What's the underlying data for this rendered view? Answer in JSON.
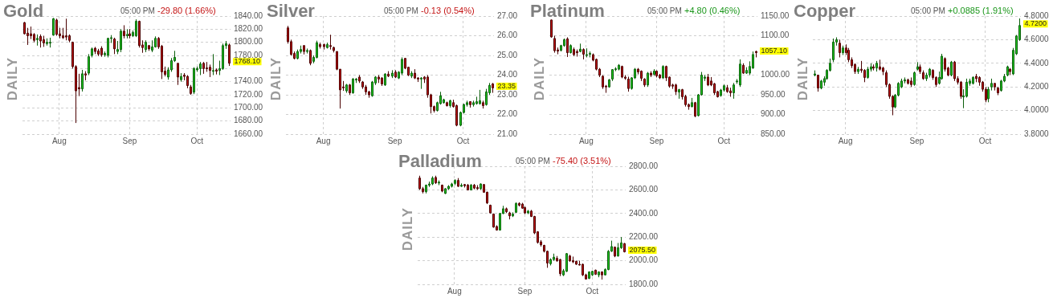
{
  "chart_data": [
    {
      "type": "candlestick",
      "title": "Gold",
      "subtitle": "05:00 PM",
      "ylabel": "DAILY",
      "grid": true,
      "categories": [
        null,
        null,
        null,
        null,
        null,
        null,
        null,
        null,
        null,
        null,
        null,
        "Aug",
        null,
        null,
        null,
        null,
        null,
        null,
        null,
        null,
        null,
        null,
        null,
        null,
        null,
        null,
        null,
        null,
        null,
        null,
        null,
        null,
        null,
        "Sep",
        null,
        null,
        null,
        null,
        null,
        null,
        null,
        null,
        null,
        null,
        null,
        null,
        null,
        null,
        null,
        null,
        null,
        null,
        null,
        null,
        "Oct",
        null,
        null,
        null,
        null,
        null,
        null,
        null,
        null,
        null,
        null
      ],
      "ohlc": [
        [
          1830,
          1831,
          1812,
          1813
        ],
        [
          1814,
          1822,
          1796,
          1810
        ],
        [
          1813,
          1824,
          1805,
          1810
        ],
        [
          1812,
          1814,
          1800,
          1803
        ],
        [
          1804,
          1812,
          1795,
          1806
        ],
        [
          1809,
          1812,
          1792,
          1802
        ],
        [
          1804,
          1810,
          1793,
          1799
        ],
        [
          1798,
          1806,
          1795,
          1800
        ],
        [
          1799,
          1807,
          1792,
          1800
        ],
        [
          1811,
          1837,
          1810,
          1836
        ],
        [
          1834,
          1836,
          1810,
          1812
        ],
        [
          1813,
          1822,
          1806,
          1810
        ],
        [
          1810,
          1822,
          1805,
          1807
        ],
        [
          1810,
          1836,
          1803,
          1808
        ],
        [
          1810,
          1812,
          1800,
          1803
        ],
        [
          1800,
          1801,
          1760,
          1763
        ],
        [
          1763,
          1765,
          1677,
          1726
        ],
        [
          1731,
          1752,
          1718,
          1729
        ],
        [
          1729,
          1758,
          1725,
          1752
        ],
        [
          1752,
          1756,
          1742,
          1750
        ],
        [
          1753,
          1782,
          1750,
          1778
        ],
        [
          1780,
          1792,
          1777,
          1790
        ],
        [
          1791,
          1793,
          1782,
          1786
        ],
        [
          1787,
          1790,
          1779,
          1782
        ],
        [
          1791,
          1794,
          1778,
          1781
        ],
        [
          1781,
          1786,
          1778,
          1783
        ],
        [
          1780,
          1807,
          1777,
          1806
        ],
        [
          1806,
          1811,
          1799,
          1807
        ],
        [
          1805,
          1807,
          1782,
          1790
        ],
        [
          1786,
          1802,
          1782,
          1789
        ],
        [
          1789,
          1820,
          1785,
          1817
        ],
        [
          1817,
          1826,
          1806,
          1810
        ],
        [
          1810,
          1820,
          1806,
          1812
        ],
        [
          1813,
          1820,
          1806,
          1810
        ],
        [
          1810,
          1818,
          1808,
          1815
        ],
        [
          1810,
          1835,
          1808,
          1832
        ],
        [
          1832,
          1833,
          1792,
          1795
        ],
        [
          1796,
          1803,
          1784,
          1792
        ],
        [
          1789,
          1803,
          1785,
          1800
        ],
        [
          1795,
          1796,
          1787,
          1790
        ],
        [
          1788,
          1803,
          1785,
          1793
        ],
        [
          1793,
          1809,
          1792,
          1806
        ],
        [
          1806,
          1808,
          1790,
          1793
        ],
        [
          1794,
          1796,
          1744,
          1755
        ],
        [
          1756,
          1763,
          1748,
          1751
        ],
        [
          1747,
          1762,
          1743,
          1758
        ],
        [
          1758,
          1776,
          1755,
          1772
        ],
        [
          1772,
          1787,
          1770,
          1777
        ],
        [
          1768,
          1768,
          1735,
          1747
        ],
        [
          1743,
          1753,
          1740,
          1748
        ],
        [
          1750,
          1753,
          1742,
          1748
        ],
        [
          1748,
          1750,
          1730,
          1734
        ],
        [
          1732,
          1735,
          1720,
          1722
        ],
        [
          1724,
          1762,
          1721,
          1760
        ],
        [
          1758,
          1763,
          1755,
          1760
        ],
        [
          1760,
          1770,
          1750,
          1767
        ],
        [
          1768,
          1770,
          1752,
          1760
        ],
        [
          1761,
          1770,
          1755,
          1760
        ],
        [
          1762,
          1766,
          1747,
          1757
        ],
        [
          1756,
          1782,
          1750,
          1757
        ],
        [
          1758,
          1760,
          1751,
          1756
        ],
        [
          1757,
          1772,
          1750,
          1760
        ],
        [
          1760,
          1798,
          1758,
          1795
        ],
        [
          1795,
          1802,
          1790,
          1797.9
        ],
        [
          1796,
          1798,
          1764,
          1768.1
        ]
      ],
      "ylim": [
        1660,
        1840
      ],
      "yticks": [
        {
          "value": 1660,
          "label": "1660.00"
        },
        {
          "value": 1680,
          "label": "1680.00"
        },
        {
          "value": 1700,
          "label": "1700.00"
        },
        {
          "value": 1720,
          "label": "1720.00"
        },
        {
          "value": 1740,
          "label": "1740.00"
        },
        {
          "value": 1760,
          "label": null
        },
        {
          "value": 1780,
          "label": "1780.00"
        },
        {
          "value": 1800,
          "label": "1800.00"
        },
        {
          "value": 1820,
          "label": "1820.00"
        },
        {
          "value": 1840,
          "label": "1840.00"
        }
      ],
      "annotations": [
        "-29.80 (1.66%)",
        "1768.10"
      ]
    },
    {
      "type": "candlestick",
      "title": "Silver",
      "subtitle": "05:00 PM",
      "ylabel": "DAILY",
      "grid": true,
      "categories": [
        null,
        null,
        null,
        null,
        null,
        null,
        null,
        null,
        null,
        null,
        null,
        "Aug",
        null,
        null,
        null,
        null,
        null,
        null,
        null,
        null,
        null,
        null,
        null,
        null,
        null,
        null,
        null,
        null,
        null,
        null,
        null,
        null,
        null,
        "Sep",
        null,
        null,
        null,
        null,
        null,
        null,
        null,
        null,
        null,
        null,
        null,
        null,
        null,
        null,
        null,
        null,
        null,
        null,
        null,
        null,
        "Oct",
        null,
        null,
        null,
        null,
        null,
        null,
        null,
        null,
        null
      ],
      "ohlc": [
        [
          26.4,
          26.5,
          25.6,
          25.7
        ],
        [
          25.7,
          25.8,
          25.0,
          25.05
        ],
        [
          25.1,
          25.2,
          24.8,
          24.85
        ],
        [
          24.85,
          25.3,
          24.8,
          25.2
        ],
        [
          25.2,
          25.5,
          25.1,
          25.3
        ],
        [
          25.5,
          25.5,
          25.05,
          25.2
        ],
        [
          25.2,
          25.35,
          25.1,
          25.25
        ],
        [
          25.25,
          25.3,
          24.5,
          24.6
        ],
        [
          24.7,
          25.0,
          24.6,
          24.9
        ],
        [
          24.9,
          25.75,
          24.85,
          25.65
        ],
        [
          25.55,
          25.65,
          25.35,
          25.45
        ],
        [
          25.55,
          25.6,
          25.3,
          25.45
        ],
        [
          25.4,
          25.65,
          25.35,
          25.55
        ],
        [
          25.5,
          26.05,
          25.3,
          25.45
        ],
        [
          25.4,
          25.45,
          25.15,
          25.25
        ],
        [
          25.2,
          25.2,
          24.25,
          24.3
        ],
        [
          24.3,
          24.3,
          22.3,
          23.25
        ],
        [
          23.4,
          23.7,
          23.2,
          23.35
        ],
        [
          23.2,
          23.55,
          23.1,
          23.5
        ],
        [
          23.5,
          23.55,
          23.0,
          23.1
        ],
        [
          23.1,
          23.85,
          23.05,
          23.8
        ],
        [
          23.75,
          23.85,
          23.6,
          23.8
        ],
        [
          23.9,
          24.0,
          23.6,
          23.7
        ],
        [
          23.65,
          23.7,
          23.3,
          23.4
        ],
        [
          23.4,
          23.5,
          23.0,
          23.15
        ],
        [
          23.15,
          23.2,
          22.85,
          23.0
        ],
        [
          22.95,
          23.7,
          22.9,
          23.65
        ],
        [
          23.6,
          23.95,
          23.5,
          23.9
        ],
        [
          23.9,
          24.0,
          23.6,
          23.8
        ],
        [
          23.85,
          23.9,
          23.45,
          23.55
        ],
        [
          23.5,
          24.1,
          23.45,
          24.05
        ],
        [
          24.05,
          24.2,
          23.9,
          23.95
        ],
        [
          23.95,
          24.25,
          23.85,
          24.1
        ],
        [
          24.15,
          24.25,
          23.85,
          23.9
        ],
        [
          23.85,
          24.2,
          23.8,
          24.15
        ],
        [
          24.1,
          24.9,
          24.0,
          24.8
        ],
        [
          24.85,
          24.85,
          24.3,
          24.35
        ],
        [
          24.4,
          24.4,
          23.95,
          24.0
        ],
        [
          23.95,
          24.2,
          23.85,
          24.1
        ],
        [
          24.1,
          24.3,
          23.8,
          23.85
        ],
        [
          23.85,
          23.9,
          23.65,
          23.8
        ],
        [
          23.8,
          23.9,
          23.3,
          23.85
        ],
        [
          23.9,
          23.95,
          23.6,
          23.8
        ],
        [
          23.9,
          24.0,
          22.85,
          23.0
        ],
        [
          23.0,
          23.05,
          22.05,
          22.4
        ],
        [
          22.4,
          22.45,
          22.1,
          22.2
        ],
        [
          22.2,
          22.65,
          22.15,
          22.6
        ],
        [
          22.55,
          23.15,
          22.5,
          22.95
        ],
        [
          22.6,
          22.8,
          22.55,
          22.75
        ],
        [
          22.6,
          22.65,
          22.4,
          22.45
        ],
        [
          22.45,
          22.75,
          22.35,
          22.7
        ],
        [
          22.6,
          22.75,
          22.35,
          22.4
        ],
        [
          22.45,
          22.5,
          21.4,
          21.45
        ],
        [
          21.45,
          22.15,
          21.4,
          22.1
        ],
        [
          22.1,
          22.55,
          22.05,
          22.5
        ],
        [
          22.5,
          22.7,
          22.4,
          22.6
        ],
        [
          22.65,
          22.65,
          22.35,
          22.5
        ],
        [
          22.5,
          22.7,
          22.4,
          22.6
        ],
        [
          22.55,
          22.9,
          22.5,
          22.65
        ],
        [
          22.55,
          23.25,
          22.5,
          22.7
        ],
        [
          22.6,
          22.7,
          22.3,
          22.45
        ],
        [
          22.5,
          23.3,
          22.45,
          23.15
        ],
        [
          23.1,
          23.6,
          23.0,
          23.48
        ],
        [
          23.55,
          23.6,
          23.1,
          23.35
        ]
      ],
      "ylim": [
        21,
        27
      ],
      "yticks": [
        {
          "value": 21,
          "label": "21.00"
        },
        {
          "value": 22,
          "label": "22.00"
        },
        {
          "value": 23,
          "label": "23.00"
        },
        {
          "value": 24,
          "label": "24.00"
        },
        {
          "value": 25,
          "label": "25.00"
        },
        {
          "value": 26,
          "label": "26.00"
        },
        {
          "value": 27,
          "label": "27.00"
        }
      ],
      "annotations": [
        "-0.13 (0.54%)",
        "23.35"
      ]
    },
    {
      "type": "candlestick",
      "title": "Platinum",
      "subtitle": "05:00 PM",
      "ylabel": "DAILY",
      "grid": true,
      "categories": [
        null,
        null,
        null,
        null,
        null,
        null,
        null,
        null,
        null,
        null,
        null,
        "Aug",
        null,
        null,
        null,
        null,
        null,
        null,
        null,
        null,
        null,
        null,
        null,
        null,
        null,
        null,
        null,
        null,
        null,
        null,
        null,
        null,
        null,
        "Sep",
        null,
        null,
        null,
        null,
        null,
        null,
        null,
        null,
        null,
        null,
        null,
        null,
        null,
        null,
        null,
        null,
        null,
        null,
        null,
        null,
        "Oct",
        null,
        null,
        null,
        null,
        null,
        null,
        null,
        null,
        null,
        null
      ],
      "ohlc": [
        [
          1140,
          1141,
          1095,
          1097
        ],
        [
          1093,
          1100,
          1057,
          1062
        ],
        [
          1064,
          1070,
          1053,
          1061
        ],
        [
          1063,
          1077,
          1060,
          1075
        ],
        [
          1075,
          1093,
          1072,
          1090
        ],
        [
          1092,
          1096,
          1046,
          1057
        ],
        [
          1057,
          1078,
          1055,
          1075
        ],
        [
          1065,
          1070,
          1048,
          1052
        ],
        [
          1060,
          1065,
          1047,
          1057
        ],
        [
          1060,
          1080,
          1058,
          1066
        ],
        [
          1065,
          1068,
          1040,
          1053
        ],
        [
          1050,
          1068,
          1045,
          1052
        ],
        [
          1053,
          1060,
          1045,
          1055
        ],
        [
          1052,
          1055,
          1035,
          1038
        ],
        [
          1040,
          1042,
          1012,
          1015
        ],
        [
          1015,
          1018,
          995,
          1000
        ],
        [
          997,
          1000,
          965,
          970
        ],
        [
          972,
          975,
          955,
          970
        ],
        [
          970,
          990,
          968,
          988
        ],
        [
          990,
          1015,
          985,
          1014
        ],
        [
          1014,
          1020,
          1010,
          1016
        ],
        [
          1015,
          1028,
          1012,
          1025
        ],
        [
          1022,
          1024,
          992,
          995
        ],
        [
          995,
          1000,
          988,
          992
        ],
        [
          990,
          996,
          958,
          966
        ],
        [
          966,
          995,
          963,
          993
        ],
        [
          993,
          1018,
          990,
          1015
        ],
        [
          1015,
          1018,
          1002,
          1008
        ],
        [
          1010,
          1012,
          985,
          992
        ],
        [
          990,
          992,
          970,
          975
        ],
        [
          975,
          1008,
          970,
          1005
        ],
        [
          1005,
          1010,
          995,
          1000
        ],
        [
          1002,
          1015,
          998,
          1010
        ],
        [
          1010,
          1012,
          994,
          998
        ],
        [
          1000,
          1003,
          990,
          993
        ],
        [
          993,
          1025,
          990,
          1022
        ],
        [
          1022,
          1024,
          985,
          993
        ],
        [
          995,
          996,
          968,
          972
        ],
        [
          975,
          978,
          965,
          972
        ],
        [
          975,
          978,
          950,
          958
        ],
        [
          957,
          965,
          940,
          963
        ],
        [
          963,
          965,
          938,
          945
        ],
        [
          946,
          950,
          920,
          925
        ],
        [
          925,
          928,
          912,
          920
        ],
        [
          920,
          942,
          918,
          930
        ],
        [
          930,
          932,
          893,
          896
        ],
        [
          897,
          952,
          895,
          950
        ],
        [
          950,
          1008,
          948,
          1000
        ],
        [
          992,
          1000,
          985,
          995
        ],
        [
          995,
          1003,
          972,
          975
        ],
        [
          985,
          995,
          972,
          975
        ],
        [
          978,
          980,
          950,
          955
        ],
        [
          958,
          960,
          943,
          945
        ],
        [
          948,
          965,
          945,
          962
        ],
        [
          962,
          976,
          958,
          973
        ],
        [
          968,
          975,
          955,
          958
        ],
        [
          960,
          968,
          945,
          955
        ],
        [
          955,
          980,
          940,
          975
        ],
        [
          983,
          990,
          978,
          985
        ],
        [
          975,
          1040,
          970,
          1028
        ],
        [
          1025,
          1030,
          1003,
          1005
        ],
        [
          1005,
          1020,
          1003,
          1012
        ],
        [
          1005,
          1035,
          1000,
          1022
        ],
        [
          1018,
          1060,
          1016,
          1052.3
        ],
        [
          1060,
          1062,
          1045,
          1057.1
        ]
      ],
      "ylim": [
        850,
        1150
      ],
      "yticks": [
        {
          "value": 850,
          "label": "850.00"
        },
        {
          "value": 900,
          "label": "900.00"
        },
        {
          "value": 950,
          "label": "950.00"
        },
        {
          "value": 1000,
          "label": "1000.00"
        },
        {
          "value": 1050,
          "label": null
        },
        {
          "value": 1100,
          "label": "1100.00"
        },
        {
          "value": 1150,
          "label": "1150.00"
        }
      ],
      "annotations": [
        "+4.80 (0.46%)",
        "1057.10"
      ]
    },
    {
      "type": "candlestick",
      "title": "Copper",
      "subtitle": "05:00 PM",
      "ylabel": "DAILY",
      "grid": true,
      "categories": [
        null,
        null,
        null,
        null,
        null,
        null,
        null,
        null,
        null,
        null,
        "Aug",
        null,
        null,
        null,
        null,
        null,
        null,
        null,
        null,
        null,
        null,
        null,
        null,
        null,
        null,
        null,
        null,
        null,
        null,
        null,
        null,
        null,
        null,
        "Sep",
        null,
        null,
        null,
        null,
        null,
        null,
        null,
        null,
        null,
        null,
        null,
        null,
        null,
        null,
        null,
        null,
        null,
        null,
        null,
        null,
        null,
        "Oct",
        null,
        null,
        null,
        null,
        null,
        null,
        null,
        null,
        null,
        null,
        null
      ],
      "ohlc": [
        [
          4.3,
          4.34,
          4.29,
          4.31
        ],
        [
          4.3,
          4.3,
          4.16,
          4.19
        ],
        [
          4.19,
          4.26,
          4.18,
          4.25
        ],
        [
          4.24,
          4.29,
          4.21,
          4.27
        ],
        [
          4.27,
          4.35,
          4.26,
          4.34
        ],
        [
          4.34,
          4.44,
          4.33,
          4.4
        ],
        [
          4.43,
          4.61,
          4.41,
          4.58
        ],
        [
          4.58,
          4.62,
          4.55,
          4.6
        ],
        [
          4.57,
          4.6,
          4.45,
          4.49
        ],
        [
          4.49,
          4.55,
          4.47,
          4.53
        ],
        [
          4.53,
          4.56,
          4.47,
          4.49
        ],
        [
          4.51,
          4.53,
          4.41,
          4.43
        ],
        [
          4.43,
          4.45,
          4.36,
          4.38
        ],
        [
          4.39,
          4.4,
          4.31,
          4.33
        ],
        [
          4.33,
          4.37,
          4.31,
          4.35
        ],
        [
          4.35,
          4.42,
          4.32,
          4.34
        ],
        [
          4.34,
          4.35,
          4.24,
          4.28
        ],
        [
          4.28,
          4.37,
          4.27,
          4.35
        ],
        [
          4.35,
          4.4,
          4.33,
          4.37
        ],
        [
          4.37,
          4.39,
          4.34,
          4.36
        ],
        [
          4.36,
          4.42,
          4.33,
          4.4
        ],
        [
          4.37,
          4.43,
          4.34,
          4.35
        ],
        [
          4.36,
          4.37,
          4.3,
          4.33
        ],
        [
          4.32,
          4.34,
          4.2,
          4.22
        ],
        [
          4.22,
          4.23,
          4.1,
          4.12
        ],
        [
          4.12,
          4.13,
          3.96,
          4.03
        ],
        [
          4.03,
          4.14,
          4.02,
          4.13
        ],
        [
          4.13,
          4.24,
          4.12,
          4.23
        ],
        [
          4.2,
          4.27,
          4.19,
          4.25
        ],
        [
          4.25,
          4.28,
          4.23,
          4.26
        ],
        [
          4.26,
          4.27,
          4.22,
          4.23
        ],
        [
          4.25,
          4.28,
          4.2,
          4.22
        ],
        [
          4.22,
          4.33,
          4.21,
          4.32
        ],
        [
          4.35,
          4.41,
          4.34,
          4.37
        ],
        [
          4.37,
          4.39,
          4.31,
          4.33
        ],
        [
          4.32,
          4.34,
          4.26,
          4.27
        ],
        [
          4.27,
          4.32,
          4.25,
          4.3
        ],
        [
          4.3,
          4.36,
          4.28,
          4.35
        ],
        [
          4.34,
          4.35,
          4.26,
          4.28
        ],
        [
          4.28,
          4.29,
          4.2,
          4.22
        ],
        [
          4.23,
          4.33,
          4.22,
          4.28
        ],
        [
          4.27,
          4.48,
          4.26,
          4.46
        ],
        [
          4.44,
          4.45,
          4.33,
          4.35
        ],
        [
          4.36,
          4.37,
          4.29,
          4.3
        ],
        [
          4.3,
          4.42,
          4.29,
          4.41
        ],
        [
          4.41,
          4.42,
          4.25,
          4.27
        ],
        [
          4.27,
          4.29,
          4.22,
          4.24
        ],
        [
          4.24,
          4.25,
          4.1,
          4.12
        ],
        [
          4.115,
          4.18,
          4.02,
          4.125
        ],
        [
          4.12,
          4.27,
          4.11,
          4.24
        ],
        [
          4.23,
          4.27,
          4.21,
          4.25
        ],
        [
          4.23,
          4.29,
          4.22,
          4.28
        ],
        [
          4.29,
          4.31,
          4.24,
          4.27
        ],
        [
          4.28,
          4.29,
          4.21,
          4.24
        ],
        [
          4.24,
          4.25,
          4.16,
          4.18
        ],
        [
          4.18,
          4.2,
          4.07,
          4.09
        ],
        [
          4.1,
          4.2,
          4.07,
          4.18
        ],
        [
          4.2,
          4.27,
          4.17,
          4.23
        ],
        [
          4.23,
          4.23,
          4.17,
          4.2
        ],
        [
          4.19,
          4.2,
          4.13,
          4.15
        ],
        [
          4.17,
          4.26,
          4.16,
          4.25
        ],
        [
          4.25,
          4.31,
          4.24,
          4.29
        ],
        [
          4.3,
          4.38,
          4.29,
          4.37
        ],
        [
          4.35,
          4.36,
          4.3,
          4.33
        ],
        [
          4.31,
          4.53,
          4.3,
          4.51
        ],
        [
          4.48,
          4.64,
          4.47,
          4.6315
        ],
        [
          4.6,
          4.78,
          4.59,
          4.72
        ]
      ],
      "ylim": [
        3.8,
        4.8
      ],
      "yticks": [
        {
          "value": 3.8,
          "label": "3.8000"
        },
        {
          "value": 4.0,
          "label": "4.0000"
        },
        {
          "value": 4.2,
          "label": "4.2000"
        },
        {
          "value": 4.4,
          "label": "4.4000"
        },
        {
          "value": 4.6,
          "label": "4.6000"
        },
        {
          "value": 4.8,
          "label": "4.8000"
        }
      ],
      "annotations": [
        "+0.0885 (1.91%)",
        "4.7200"
      ]
    },
    {
      "type": "candlestick",
      "title": "Palladium",
      "subtitle": "05:00 PM",
      "ylabel": "DAILY",
      "grid": true,
      "categories": [
        null,
        null,
        null,
        null,
        null,
        null,
        null,
        null,
        null,
        null,
        null,
        "Aug",
        null,
        null,
        null,
        null,
        null,
        null,
        null,
        null,
        null,
        null,
        null,
        null,
        null,
        null,
        null,
        null,
        null,
        null,
        null,
        null,
        null,
        "Sep",
        null,
        null,
        null,
        null,
        null,
        null,
        null,
        null,
        null,
        null,
        null,
        null,
        null,
        null,
        null,
        null,
        null,
        null,
        null,
        null,
        "Oct",
        null,
        null,
        null,
        null,
        null,
        null,
        null,
        null,
        null,
        null
      ],
      "ohlc": [
        [
          2700,
          2720,
          2600,
          2610
        ],
        [
          2610,
          2625,
          2570,
          2585
        ],
        [
          2585,
          2645,
          2570,
          2640
        ],
        [
          2640,
          2670,
          2625,
          2650
        ],
        [
          2650,
          2715,
          2640,
          2700
        ],
        [
          2705,
          2720,
          2650,
          2660
        ],
        [
          2660,
          2680,
          2640,
          2665
        ],
        [
          2640,
          2645,
          2580,
          2590
        ],
        [
          2570,
          2615,
          2565,
          2610
        ],
        [
          2610,
          2640,
          2600,
          2630
        ],
        [
          2630,
          2660,
          2620,
          2650
        ],
        [
          2655,
          2690,
          2640,
          2680
        ],
        [
          2680,
          2700,
          2625,
          2630
        ],
        [
          2630,
          2655,
          2625,
          2640
        ],
        [
          2645,
          2650,
          2620,
          2635
        ],
        [
          2640,
          2650,
          2595,
          2600
        ],
        [
          2600,
          2650,
          2595,
          2640
        ],
        [
          2640,
          2650,
          2605,
          2615
        ],
        [
          2620,
          2640,
          2600,
          2610
        ],
        [
          2610,
          2655,
          2600,
          2650
        ],
        [
          2645,
          2650,
          2575,
          2580
        ],
        [
          2580,
          2585,
          2480,
          2490
        ],
        [
          2470,
          2475,
          2400,
          2405
        ],
        [
          2395,
          2400,
          2280,
          2285
        ],
        [
          2290,
          2300,
          2255,
          2260
        ],
        [
          2260,
          2405,
          2255,
          2400
        ],
        [
          2400,
          2465,
          2395,
          2440
        ],
        [
          2440,
          2450,
          2405,
          2415
        ],
        [
          2405,
          2415,
          2350,
          2380
        ],
        [
          2380,
          2410,
          2370,
          2395
        ],
        [
          2410,
          2495,
          2405,
          2485
        ],
        [
          2485,
          2495,
          2460,
          2470
        ],
        [
          2480,
          2490,
          2440,
          2445
        ],
        [
          2450,
          2460,
          2395,
          2405
        ],
        [
          2405,
          2430,
          2395,
          2420
        ],
        [
          2420,
          2430,
          2370,
          2375
        ],
        [
          2375,
          2380,
          2225,
          2235
        ],
        [
          2245,
          2250,
          2145,
          2155
        ],
        [
          2160,
          2175,
          2120,
          2135
        ],
        [
          2130,
          2135,
          2070,
          2080
        ],
        [
          2080,
          2085,
          1940,
          1980
        ],
        [
          1975,
          2020,
          1960,
          2010
        ],
        [
          2010,
          2060,
          2000,
          2030
        ],
        [
          2020,
          2040,
          1990,
          2000
        ],
        [
          2010,
          2015,
          1870,
          1890
        ],
        [
          1880,
          1930,
          1870,
          1915
        ],
        [
          1910,
          2065,
          1905,
          2060
        ],
        [
          2040,
          2050,
          1990,
          2000
        ],
        [
          2000,
          2035,
          1980,
          1990
        ],
        [
          1995,
          2000,
          1965,
          1970
        ],
        [
          1970,
          2000,
          1960,
          1965
        ],
        [
          1970,
          1975,
          1870,
          1880
        ],
        [
          1880,
          1890,
          1840,
          1845
        ],
        [
          1850,
          1910,
          1845,
          1905
        ],
        [
          1880,
          1915,
          1870,
          1910
        ],
        [
          1920,
          1925,
          1880,
          1885
        ],
        [
          1880,
          1910,
          1860,
          1905
        ],
        [
          1905,
          1910,
          1840,
          1880
        ],
        [
          1880,
          1935,
          1875,
          1925
        ],
        [
          1925,
          2090,
          1920,
          2080
        ],
        [
          2080,
          2170,
          2075,
          2120
        ],
        [
          2115,
          2120,
          2030,
          2040
        ],
        [
          2040,
          2150,
          2035,
          2110
        ],
        [
          2110,
          2200,
          2100,
          2150.9
        ],
        [
          2145,
          2150,
          2070,
          2075.5
        ]
      ],
      "ylim": [
        1800,
        2800
      ],
      "yticks": [
        {
          "value": 1800,
          "label": "1800.00"
        },
        {
          "value": 2000,
          "label": "2000.00"
        },
        {
          "value": 2200,
          "label": "2200.00"
        },
        {
          "value": 2400,
          "label": "2400.00"
        },
        {
          "value": 2600,
          "label": "2600.00"
        },
        {
          "value": 2800,
          "label": "2800.00"
        }
      ],
      "annotations": [
        "-75.40 (3.51%)",
        "2075.50"
      ]
    }
  ]
}
